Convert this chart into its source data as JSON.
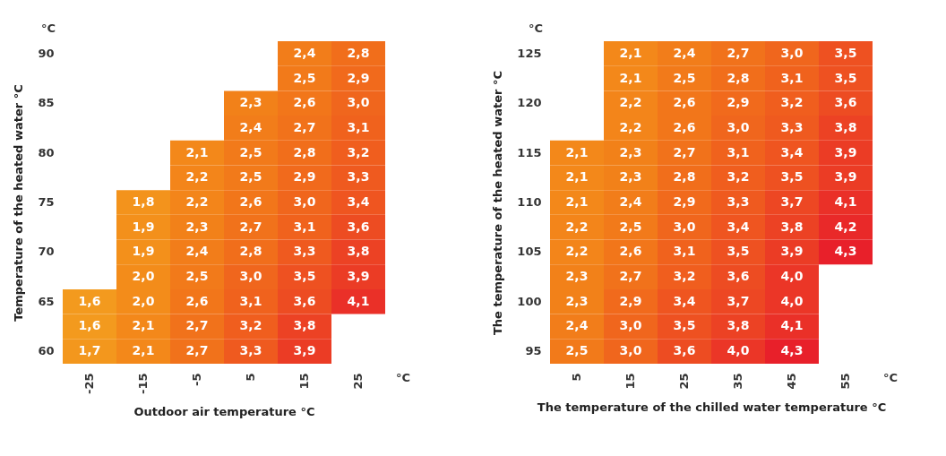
{
  "chart_data": [
    {
      "type": "heatmap",
      "xlabel": "Outdoor air temperature °C",
      "ylabel": "Temperature of the heated water °C",
      "annotations": [
        "°C",
        "°C"
      ],
      "categories": [
        "-25",
        "-15",
        "-5",
        "5",
        "15",
        "25"
      ],
      "y_categories": [
        "90",
        null,
        "85",
        null,
        "80",
        null,
        "75",
        null,
        "70",
        null,
        "65",
        null,
        "60"
      ],
      "cells": [
        [
          null,
          null,
          null,
          null,
          2.4,
          2.8
        ],
        [
          null,
          null,
          null,
          null,
          2.5,
          2.9
        ],
        [
          null,
          null,
          null,
          2.3,
          2.6,
          3.0
        ],
        [
          null,
          null,
          null,
          2.4,
          2.7,
          3.1
        ],
        [
          null,
          null,
          2.1,
          2.5,
          2.8,
          3.2
        ],
        [
          null,
          null,
          2.2,
          2.5,
          2.9,
          3.3
        ],
        [
          null,
          1.8,
          2.2,
          2.6,
          3.0,
          3.4
        ],
        [
          null,
          1.9,
          2.3,
          2.7,
          3.1,
          3.6
        ],
        [
          null,
          1.9,
          2.4,
          2.8,
          3.3,
          3.8
        ],
        [
          null,
          2.0,
          2.5,
          3.0,
          3.5,
          3.9
        ],
        [
          1.6,
          2.0,
          2.6,
          3.1,
          3.6,
          4.1
        ],
        [
          1.6,
          2.1,
          2.7,
          3.2,
          3.8,
          null
        ],
        [
          1.7,
          2.1,
          2.7,
          3.3,
          3.9,
          null
        ]
      ],
      "cell_labels": [
        [
          null,
          null,
          null,
          null,
          "2,4",
          "2,8"
        ],
        [
          null,
          null,
          null,
          null,
          "2,5",
          "2,9"
        ],
        [
          null,
          null,
          null,
          "2,3",
          "2,6",
          "3,0"
        ],
        [
          null,
          null,
          null,
          "2,4",
          "2,7",
          "3,1"
        ],
        [
          null,
          null,
          "2,1",
          "2,5",
          "2,8",
          "3,2"
        ],
        [
          null,
          null,
          "2,2",
          "2,5",
          "2,9",
          "3,3"
        ],
        [
          null,
          "1,8",
          "2,2",
          "2,6",
          "3,0",
          "3,4"
        ],
        [
          null,
          "1,9",
          "2,3",
          "2,7",
          "3,1",
          "3,6"
        ],
        [
          null,
          "1,9",
          "2,4",
          "2,8",
          "3,3",
          "3,8"
        ],
        [
          null,
          "2,0",
          "2,5",
          "3,0",
          "3,5",
          "3,9"
        ],
        [
          "1,6",
          "2,0",
          "2,6",
          "3,1",
          "3,6",
          "4,1"
        ],
        [
          "1,6",
          "2,1",
          "2,7",
          "3,2",
          "3,8",
          null
        ],
        [
          "1,7",
          "2,1",
          "2,7",
          "3,3",
          "3,9",
          null
        ]
      ]
    },
    {
      "type": "heatmap",
      "xlabel": "The temperature of the chilled water temperature °C",
      "ylabel": "The temperature of the heated water °C",
      "annotations": [
        "°C",
        "°C"
      ],
      "categories": [
        "5",
        "15",
        "25",
        "35",
        "45",
        "55"
      ],
      "y_categories": [
        "125",
        null,
        "120",
        null,
        "115",
        null,
        "110",
        null,
        "105",
        null,
        "100",
        null,
        "95"
      ],
      "cells": [
        [
          null,
          2.1,
          2.4,
          2.7,
          3.0,
          3.5
        ],
        [
          null,
          2.1,
          2.5,
          2.8,
          3.1,
          3.5
        ],
        [
          null,
          2.2,
          2.6,
          2.9,
          3.2,
          3.6
        ],
        [
          null,
          2.2,
          2.6,
          3.0,
          3.3,
          3.8
        ],
        [
          2.1,
          2.3,
          2.7,
          3.1,
          3.4,
          3.9
        ],
        [
          2.1,
          2.3,
          2.8,
          3.2,
          3.5,
          3.9
        ],
        [
          2.1,
          2.4,
          2.9,
          3.3,
          3.7,
          4.1
        ],
        [
          2.2,
          2.5,
          3.0,
          3.4,
          3.8,
          4.2
        ],
        [
          2.2,
          2.6,
          3.1,
          3.5,
          3.9,
          4.3
        ],
        [
          2.3,
          2.7,
          3.2,
          3.6,
          4.0,
          null
        ],
        [
          2.3,
          2.9,
          3.4,
          3.7,
          4.0,
          null
        ],
        [
          2.4,
          3.0,
          3.5,
          3.8,
          4.1,
          null
        ],
        [
          2.5,
          3.0,
          3.6,
          4.0,
          4.3,
          null
        ]
      ],
      "cell_labels": [
        [
          null,
          "2,1",
          "2,4",
          "2,7",
          "3,0",
          "3,5"
        ],
        [
          null,
          "2,1",
          "2,5",
          "2,8",
          "3,1",
          "3,5"
        ],
        [
          null,
          "2,2",
          "2,6",
          "2,9",
          "3,2",
          "3,6"
        ],
        [
          null,
          "2,2",
          "2,6",
          "3,0",
          "3,3",
          "3,8"
        ],
        [
          "2,1",
          "2,3",
          "2,7",
          "3,1",
          "3,4",
          "3,9"
        ],
        [
          "2,1",
          "2,3",
          "2,8",
          "3,2",
          "3,5",
          "3,9"
        ],
        [
          "2,1",
          "2,4",
          "2,9",
          "3,3",
          "3,7",
          "4,1"
        ],
        [
          "2,2",
          "2,5",
          "3,0",
          "3,4",
          "3,8",
          "4,2"
        ],
        [
          "2,2",
          "2,6",
          "3,1",
          "3,5",
          "3,9",
          "4,3"
        ],
        [
          "2,3",
          "2,7",
          "3,2",
          "3,6",
          "4,0",
          null
        ],
        [
          "2,3",
          "2,9",
          "3,4",
          "3,7",
          "4,0",
          null
        ],
        [
          "2,4",
          "3,0",
          "3,5",
          "3,8",
          "4,1",
          null
        ],
        [
          "2,5",
          "3,0",
          "3,6",
          "4,0",
          "4,3",
          null
        ]
      ]
    }
  ]
}
